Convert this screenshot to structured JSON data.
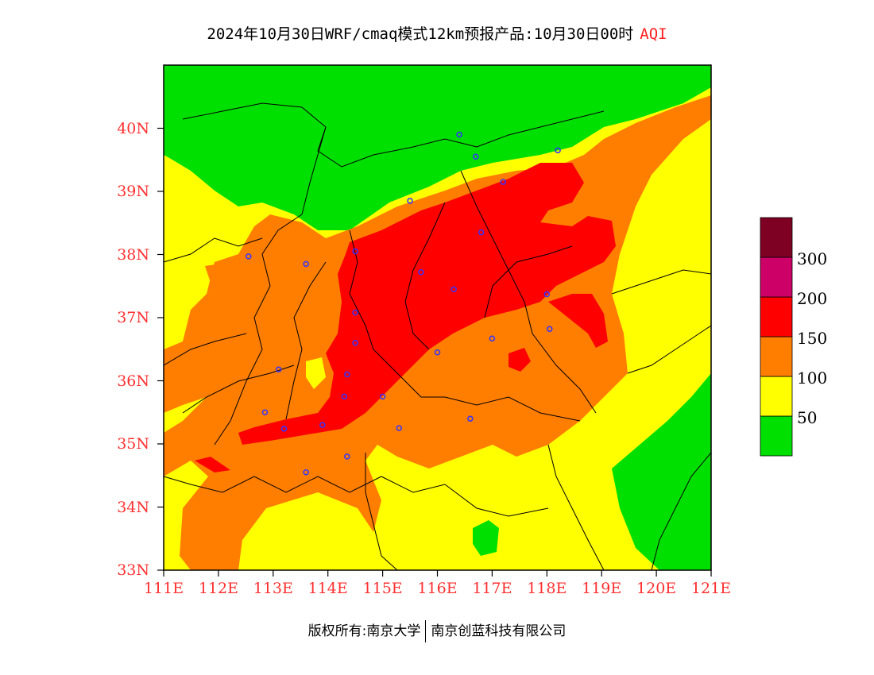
{
  "title": {
    "main": "2024年10月30日WRF/cmaq模式12km预报产品:10月30日00时",
    "variable": "AQI"
  },
  "axes": {
    "lat_labels": [
      "33N",
      "34N",
      "35N",
      "36N",
      "37N",
      "38N",
      "39N",
      "40N"
    ],
    "lon_labels": [
      "111E",
      "112E",
      "113E",
      "114E",
      "115E",
      "116E",
      "117E",
      "118E",
      "119E",
      "120E",
      "121E"
    ]
  },
  "legend": {
    "levels": [
      {
        "label": "50",
        "color": "#00e000"
      },
      {
        "label": "100",
        "color": "#ffff00"
      },
      {
        "label": "150",
        "color": "#ff7e00"
      },
      {
        "label": "200",
        "color": "#ff0000"
      },
      {
        "label": "300",
        "color": "#cc0066"
      },
      {
        "label": "",
        "color": "#7e0023"
      }
    ]
  },
  "colors": {
    "good": "#00e000",
    "moderate": "#ffff00",
    "usg": "#ff7e00",
    "unhealthy": "#ff0000",
    "very_unhealthy": "#cc0066",
    "hazardous": "#7e0023",
    "label": "#ff3030",
    "station_marker": "#3333ff"
  },
  "stations": [
    {
      "lon": 116.4,
      "lat": 39.9
    },
    {
      "lon": 116.7,
      "lat": 39.55
    },
    {
      "lon": 118.2,
      "lat": 39.65
    },
    {
      "lon": 117.2,
      "lat": 39.15
    },
    {
      "lon": 115.5,
      "lat": 38.85
    },
    {
      "lon": 116.8,
      "lat": 38.35
    },
    {
      "lon": 114.5,
      "lat": 38.05
    },
    {
      "lon": 113.6,
      "lat": 37.85
    },
    {
      "lon": 112.55,
      "lat": 37.97
    },
    {
      "lon": 115.7,
      "lat": 37.72
    },
    {
      "lon": 116.3,
      "lat": 37.45
    },
    {
      "lon": 118.0,
      "lat": 37.37
    },
    {
      "lon": 114.5,
      "lat": 37.08
    },
    {
      "lon": 118.05,
      "lat": 36.82
    },
    {
      "lon": 114.5,
      "lat": 36.6
    },
    {
      "lon": 117.0,
      "lat": 36.67
    },
    {
      "lon": 116.0,
      "lat": 36.45
    },
    {
      "lon": 113.1,
      "lat": 36.18
    },
    {
      "lon": 114.35,
      "lat": 36.1
    },
    {
      "lon": 114.3,
      "lat": 35.75
    },
    {
      "lon": 115.0,
      "lat": 35.75
    },
    {
      "lon": 112.85,
      "lat": 35.5
    },
    {
      "lon": 113.2,
      "lat": 35.24
    },
    {
      "lon": 113.9,
      "lat": 35.3
    },
    {
      "lon": 115.3,
      "lat": 35.25
    },
    {
      "lon": 116.6,
      "lat": 35.4
    },
    {
      "lon": 114.35,
      "lat": 34.8
    },
    {
      "lon": 113.6,
      "lat": 34.55
    }
  ],
  "footer": {
    "left": "版权所有:南京大学",
    "right": "南京创蓝科技有限公司"
  }
}
